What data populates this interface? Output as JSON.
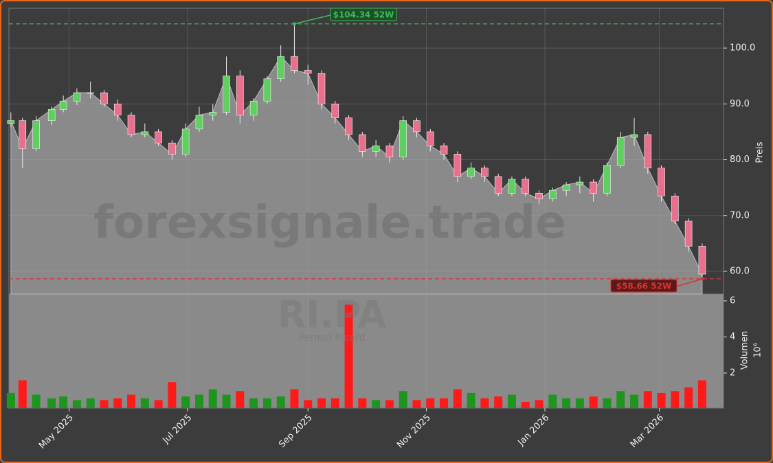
{
  "chart_data": {
    "type": "candlestick",
    "watermark": "forexsignale.trade",
    "symbol": "RI.PA",
    "company": "Pernod Ricard",
    "ylabel": "Preis",
    "y2label": "Volumen",
    "y2scale": "10⁶",
    "x": [
      "2025-04-01",
      "2025-04-07",
      "2025-04-14",
      "2025-04-22",
      "2025-04-28",
      "2025-05-05",
      "2025-05-12",
      "2025-05-19",
      "2025-05-26",
      "2025-06-02",
      "2025-06-09",
      "2025-06-16",
      "2025-06-23",
      "2025-06-30",
      "2025-07-07",
      "2025-07-14",
      "2025-07-21",
      "2025-07-28",
      "2025-08-04",
      "2025-08-11",
      "2025-08-18",
      "2025-08-25",
      "2025-09-01",
      "2025-09-08",
      "2025-09-15",
      "2025-09-22",
      "2025-09-29",
      "2025-10-06",
      "2025-10-13",
      "2025-10-20",
      "2025-10-27",
      "2025-11-03",
      "2025-11-10",
      "2025-11-17",
      "2025-11-24",
      "2025-12-01",
      "2025-12-08",
      "2025-12-15",
      "2025-12-22",
      "2025-12-29",
      "2026-01-05",
      "2026-01-12",
      "2026-01-19",
      "2026-01-26",
      "2026-02-02",
      "2026-02-09",
      "2026-02-16",
      "2026-02-23",
      "2026-03-02",
      "2026-03-09",
      "2026-03-16",
      "2026-03-23"
    ],
    "open": [
      86.5,
      87.0,
      82.0,
      87.0,
      89.0,
      90.5,
      92.0,
      92.0,
      90.0,
      88.0,
      84.5,
      85.0,
      83.0,
      81.0,
      85.5,
      88.0,
      88.5,
      95.0,
      88.0,
      90.5,
      94.5,
      98.5,
      96.0,
      95.5,
      90.0,
      87.5,
      84.5,
      81.5,
      82.5,
      80.5,
      87.0,
      85.0,
      82.5,
      81.0,
      77.0,
      78.5,
      77.0,
      74.0,
      76.5,
      74.0,
      73.0,
      74.5,
      75.5,
      76.0,
      74.0,
      79.0,
      84.0,
      84.5,
      78.5,
      73.5,
      69.0,
      64.5
    ],
    "high": [
      88.5,
      87.5,
      87.8,
      89.5,
      91.5,
      92.8,
      94.0,
      92.5,
      90.8,
      88.5,
      86.5,
      85.5,
      83.5,
      86.5,
      89.5,
      90.0,
      98.5,
      96.0,
      91.0,
      95.0,
      100.5,
      104.34,
      97.0,
      96.0,
      90.5,
      88.0,
      85.0,
      83.5,
      83.0,
      87.8,
      87.5,
      85.5,
      83.0,
      81.5,
      79.5,
      79.0,
      77.5,
      77.0,
      77.0,
      74.5,
      75.0,
      76.0,
      77.0,
      76.5,
      79.5,
      85.0,
      87.5,
      85.0,
      79.0,
      74.0,
      69.5,
      65.0
    ],
    "low": [
      85.8,
      78.5,
      81.5,
      86.2,
      88.5,
      89.8,
      91.0,
      89.5,
      87.0,
      84.0,
      84.0,
      82.5,
      80.0,
      80.5,
      85.0,
      87.0,
      88.0,
      86.5,
      87.0,
      90.0,
      94.0,
      95.5,
      93.5,
      89.0,
      86.5,
      83.5,
      80.5,
      80.5,
      79.5,
      80.0,
      84.0,
      81.5,
      80.0,
      76.0,
      76.5,
      76.0,
      73.5,
      73.5,
      73.5,
      72.0,
      72.5,
      73.5,
      74.0,
      72.5,
      73.5,
      78.5,
      82.5,
      77.5,
      72.5,
      68.5,
      63.5,
      58.66
    ],
    "close": [
      87.0,
      82.0,
      87.0,
      89.0,
      90.5,
      92.0,
      92.0,
      90.0,
      88.0,
      84.5,
      85.0,
      83.0,
      81.0,
      85.5,
      88.0,
      88.5,
      95.0,
      88.0,
      90.5,
      94.5,
      98.5,
      96.0,
      95.5,
      90.0,
      87.5,
      84.5,
      81.5,
      82.5,
      80.5,
      87.0,
      85.0,
      82.5,
      81.0,
      77.0,
      78.5,
      77.0,
      74.0,
      76.5,
      74.0,
      73.0,
      74.5,
      75.5,
      76.0,
      74.0,
      79.0,
      84.0,
      84.5,
      78.5,
      73.5,
      69.0,
      64.5,
      59.5
    ],
    "volume": [
      0.9,
      1.6,
      0.8,
      0.6,
      0.7,
      0.5,
      0.6,
      0.5,
      0.6,
      0.8,
      0.6,
      0.5,
      1.5,
      0.7,
      0.8,
      1.1,
      0.8,
      1.0,
      0.6,
      0.6,
      0.7,
      1.1,
      0.5,
      0.6,
      0.6,
      5.8,
      0.6,
      0.5,
      0.5,
      1.0,
      0.5,
      0.6,
      0.6,
      1.1,
      0.9,
      0.6,
      0.7,
      0.8,
      0.4,
      0.5,
      0.8,
      0.6,
      0.6,
      0.7,
      0.6,
      1.0,
      0.8,
      1.0,
      0.9,
      1.0,
      1.2,
      1.6
    ],
    "up_color": "#5fcf5f",
    "down_color": "#e8708c",
    "volume_up_color": "#1e951e",
    "volume_down_color": "#ff1a1a",
    "area_color": "#8a8a8a",
    "xlim": [
      "2025-03-31",
      "2026-04-03"
    ],
    "xticks": [
      {
        "value": "2025-05-01",
        "label": "May 2025"
      },
      {
        "value": "2025-07-01",
        "label": "Jul 2025"
      },
      {
        "value": "2025-09-01",
        "label": "Sep 2025"
      },
      {
        "value": "2025-11-01",
        "label": "Nov 2025"
      },
      {
        "value": "2026-01-01",
        "label": "Jan 2026"
      },
      {
        "value": "2026-03-01",
        "label": "Mar 2026"
      }
    ],
    "ylim": [
      55.94,
      107.14
    ],
    "yticks": [
      {
        "value": 60,
        "label": "60.0"
      },
      {
        "value": 70,
        "label": "70.0"
      },
      {
        "value": 80,
        "label": "80.0"
      },
      {
        "value": 90,
        "label": "90.0"
      },
      {
        "value": 100,
        "label": "100.0"
      }
    ],
    "y2lim": [
      0.06,
      6.38
    ],
    "y2ticks": [
      2,
      4,
      6
    ],
    "high_52w": {
      "value": 104.34,
      "label": "$104.34 52W",
      "color": "#3cb95a"
    },
    "low_52w": {
      "value": 58.66,
      "label": "$58.66 52W",
      "color": "#e03030"
    },
    "grid": true
  }
}
